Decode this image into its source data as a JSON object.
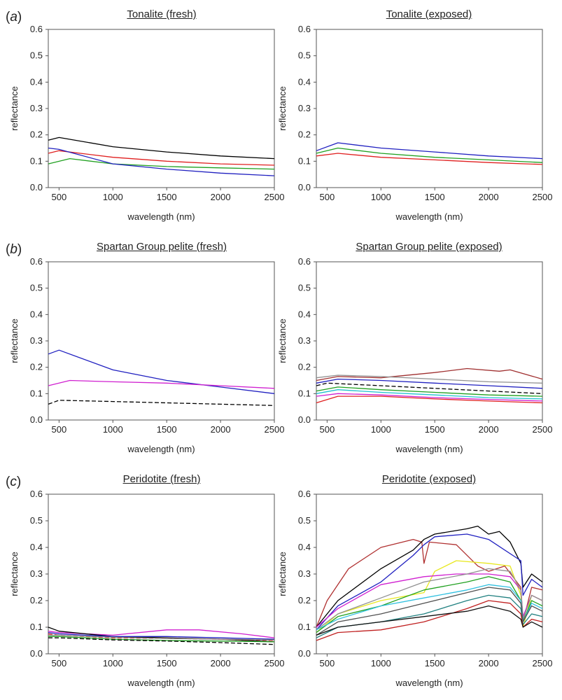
{
  "panel_labels": [
    {
      "pre": "(",
      "letter": "a",
      "post": ")"
    },
    {
      "pre": "(",
      "letter": "b",
      "post": ")"
    },
    {
      "pre": "(",
      "letter": "c",
      "post": ")"
    }
  ],
  "chart_data": [
    {
      "type": "line",
      "title": "Tonalite (fresh)",
      "xlabel": "wavelength (nm)",
      "ylabel": "reflectance",
      "xlim": [
        400,
        2500
      ],
      "ylim": [
        0,
        0.6
      ],
      "xticks": [
        500,
        1000,
        1500,
        2000,
        2500
      ],
      "yticks": [
        0.0,
        0.1,
        0.2,
        0.3,
        0.4,
        0.5,
        0.6
      ],
      "series": [
        {
          "name": "black",
          "color": "#000000",
          "x": [
            400,
            500,
            1000,
            1500,
            2000,
            2500
          ],
          "y": [
            0.18,
            0.19,
            0.155,
            0.135,
            0.12,
            0.11
          ]
        },
        {
          "name": "red",
          "color": "#e02020",
          "x": [
            400,
            500,
            1000,
            1500,
            2000,
            2500
          ],
          "y": [
            0.13,
            0.14,
            0.115,
            0.1,
            0.09,
            0.085
          ]
        },
        {
          "name": "green",
          "color": "#20a020",
          "x": [
            400,
            600,
            1000,
            1500,
            2000,
            2500
          ],
          "y": [
            0.09,
            0.11,
            0.09,
            0.08,
            0.075,
            0.07
          ]
        },
        {
          "name": "blue",
          "color": "#2020c0",
          "x": [
            400,
            500,
            1000,
            1500,
            2000,
            2500
          ],
          "y": [
            0.15,
            0.145,
            0.09,
            0.07,
            0.055,
            0.045
          ]
        }
      ]
    },
    {
      "type": "line",
      "title": "Tonalite (exposed)",
      "xlabel": "wavelength (nm)",
      "ylabel": "reflectance",
      "xlim": [
        400,
        2500
      ],
      "ylim": [
        0,
        0.6
      ],
      "xticks": [
        500,
        1000,
        1500,
        2000,
        2500
      ],
      "yticks": [
        0.0,
        0.1,
        0.2,
        0.3,
        0.4,
        0.5,
        0.6
      ],
      "series": [
        {
          "name": "blue",
          "color": "#2020c0",
          "x": [
            400,
            600,
            1000,
            1500,
            2000,
            2500
          ],
          "y": [
            0.14,
            0.17,
            0.15,
            0.135,
            0.12,
            0.11
          ]
        },
        {
          "name": "green",
          "color": "#20a020",
          "x": [
            400,
            600,
            1000,
            1500,
            2000,
            2500
          ],
          "y": [
            0.13,
            0.15,
            0.13,
            0.115,
            0.105,
            0.095
          ]
        },
        {
          "name": "red",
          "color": "#e02020",
          "x": [
            400,
            600,
            1000,
            1500,
            2000,
            2500
          ],
          "y": [
            0.12,
            0.13,
            0.115,
            0.105,
            0.095,
            0.088
          ]
        }
      ]
    },
    {
      "type": "line",
      "title": "Spartan Group pelite (fresh)",
      "xlabel": "wavelength (nm)",
      "ylabel": "reflectance",
      "xlim": [
        400,
        2500
      ],
      "ylim": [
        0,
        0.6
      ],
      "xticks": [
        500,
        1000,
        1500,
        2000,
        2500
      ],
      "yticks": [
        0.0,
        0.1,
        0.2,
        0.3,
        0.4,
        0.5,
        0.6
      ],
      "series": [
        {
          "name": "blue",
          "color": "#2020c0",
          "x": [
            400,
            500,
            1000,
            1500,
            2000,
            2500
          ],
          "y": [
            0.25,
            0.265,
            0.19,
            0.15,
            0.125,
            0.1
          ]
        },
        {
          "name": "magenta",
          "color": "#d020d0",
          "x": [
            400,
            600,
            1000,
            1500,
            2000,
            2500
          ],
          "y": [
            0.13,
            0.15,
            0.145,
            0.14,
            0.13,
            0.12
          ]
        },
        {
          "name": "black dashed",
          "color": "#000000",
          "dashed": true,
          "x": [
            400,
            500,
            1000,
            1500,
            2000,
            2500
          ],
          "y": [
            0.06,
            0.075,
            0.07,
            0.065,
            0.06,
            0.055
          ]
        }
      ]
    },
    {
      "type": "line",
      "title": "Spartan Group pelite (exposed)",
      "xlabel": "wavelength (nm)",
      "ylabel": "reflectance",
      "xlim": [
        400,
        2500
      ],
      "ylim": [
        0,
        0.6
      ],
      "xticks": [
        500,
        1000,
        1500,
        2000,
        2500
      ],
      "yticks": [
        0.0,
        0.1,
        0.2,
        0.3,
        0.4,
        0.5,
        0.6
      ],
      "series": [
        {
          "name": "brown",
          "color": "#a03030",
          "x": [
            400,
            600,
            1000,
            1500,
            1800,
            2100,
            2200,
            2500
          ],
          "y": [
            0.15,
            0.165,
            0.16,
            0.18,
            0.195,
            0.185,
            0.19,
            0.155
          ]
        },
        {
          "name": "gray",
          "color": "#909090",
          "x": [
            400,
            600,
            1000,
            1500,
            2000,
            2500
          ],
          "y": [
            0.16,
            0.17,
            0.165,
            0.155,
            0.145,
            0.14
          ]
        },
        {
          "name": "blue",
          "color": "#2020c0",
          "x": [
            400,
            600,
            1000,
            1500,
            2000,
            2500
          ],
          "y": [
            0.14,
            0.155,
            0.15,
            0.14,
            0.13,
            0.12
          ]
        },
        {
          "name": "black dashed",
          "color": "#000000",
          "dashed": true,
          "x": [
            400,
            500,
            1000,
            1500,
            2000,
            2500
          ],
          "y": [
            0.13,
            0.14,
            0.13,
            0.12,
            0.11,
            0.1
          ]
        },
        {
          "name": "green",
          "color": "#20a020",
          "x": [
            400,
            600,
            1000,
            1500,
            2000,
            2500
          ],
          "y": [
            0.11,
            0.125,
            0.115,
            0.105,
            0.095,
            0.09
          ]
        },
        {
          "name": "cyan",
          "color": "#20c0d0",
          "x": [
            400,
            600,
            1000,
            1500,
            2000,
            2500
          ],
          "y": [
            0.1,
            0.115,
            0.105,
            0.095,
            0.085,
            0.08
          ]
        },
        {
          "name": "magenta",
          "color": "#d020d0",
          "x": [
            400,
            600,
            1000,
            1500,
            2000,
            2500
          ],
          "y": [
            0.09,
            0.1,
            0.095,
            0.085,
            0.078,
            0.072
          ]
        },
        {
          "name": "red",
          "color": "#e02020",
          "x": [
            400,
            600,
            1000,
            1500,
            2000,
            2500
          ],
          "y": [
            0.065,
            0.09,
            0.09,
            0.08,
            0.072,
            0.065
          ]
        }
      ]
    },
    {
      "type": "line",
      "title": "Peridotite (fresh)",
      "xlabel": "wavelength (nm)",
      "ylabel": "reflectance",
      "xlim": [
        400,
        2500
      ],
      "ylim": [
        0,
        0.6
      ],
      "xticks": [
        500,
        1000,
        1500,
        2000,
        2500
      ],
      "yticks": [
        0.0,
        0.1,
        0.2,
        0.3,
        0.4,
        0.5,
        0.6
      ],
      "series": [
        {
          "name": "magenta",
          "color": "#d020d0",
          "x": [
            400,
            500,
            1000,
            1500,
            1800,
            2200,
            2500
          ],
          "y": [
            0.085,
            0.08,
            0.07,
            0.09,
            0.09,
            0.075,
            0.06
          ]
        },
        {
          "name": "black",
          "color": "#000000",
          "x": [
            400,
            500,
            1000,
            1500,
            2000,
            2500
          ],
          "y": [
            0.1,
            0.085,
            0.065,
            0.06,
            0.055,
            0.045
          ]
        },
        {
          "name": "blue",
          "color": "#2020c0",
          "x": [
            400,
            500,
            1000,
            1500,
            2000,
            2500
          ],
          "y": [
            0.08,
            0.075,
            0.065,
            0.065,
            0.06,
            0.055
          ]
        },
        {
          "name": "red dashed",
          "color": "#e02020",
          "dashed": true,
          "x": [
            400,
            500,
            1000,
            1500,
            2000,
            2500
          ],
          "y": [
            0.075,
            0.07,
            0.06,
            0.058,
            0.055,
            0.05
          ]
        },
        {
          "name": "green",
          "color": "#20a020",
          "x": [
            400,
            500,
            1000,
            1500,
            2000,
            2500
          ],
          "y": [
            0.065,
            0.065,
            0.055,
            0.05,
            0.048,
            0.045
          ]
        },
        {
          "name": "gray",
          "color": "#808080",
          "x": [
            400,
            500,
            1000,
            1500,
            2000,
            2500
          ],
          "y": [
            0.07,
            0.07,
            0.062,
            0.058,
            0.055,
            0.052
          ]
        },
        {
          "name": "black dashed",
          "color": "#000000",
          "dashed": true,
          "x": [
            400,
            500,
            1000,
            1500,
            2000,
            2500
          ],
          "y": [
            0.06,
            0.06,
            0.052,
            0.048,
            0.042,
            0.035
          ]
        }
      ]
    },
    {
      "type": "line",
      "title": "Peridotite (exposed)",
      "xlabel": "wavelength (nm)",
      "ylabel": "reflectance",
      "xlim": [
        400,
        2500
      ],
      "ylim": [
        0,
        0.6
      ],
      "xticks": [
        500,
        1000,
        1500,
        2000,
        2500
      ],
      "yticks": [
        0.0,
        0.1,
        0.2,
        0.3,
        0.4,
        0.5,
        0.6
      ],
      "series": [
        {
          "name": "brown",
          "color": "#b03030",
          "x": [
            400,
            500,
            700,
            1000,
            1300,
            1380,
            1400,
            1450,
            1700,
            1900,
            2000,
            2150,
            2300,
            2320,
            2400,
            2500
          ],
          "y": [
            0.1,
            0.2,
            0.32,
            0.4,
            0.43,
            0.42,
            0.34,
            0.42,
            0.41,
            0.33,
            0.31,
            0.33,
            0.25,
            0.12,
            0.25,
            0.24
          ]
        },
        {
          "name": "black",
          "color": "#000000",
          "x": [
            400,
            600,
            1000,
            1300,
            1400,
            1500,
            1800,
            1900,
            2000,
            2100,
            2200,
            2300,
            2320,
            2400,
            2500
          ],
          "y": [
            0.1,
            0.2,
            0.32,
            0.39,
            0.43,
            0.45,
            0.47,
            0.48,
            0.45,
            0.46,
            0.42,
            0.34,
            0.25,
            0.3,
            0.27
          ]
        },
        {
          "name": "blue",
          "color": "#2020c0",
          "x": [
            400,
            600,
            1000,
            1300,
            1400,
            1500,
            1800,
            1900,
            2000,
            2300,
            2320,
            2400,
            2500
          ],
          "y": [
            0.09,
            0.18,
            0.27,
            0.37,
            0.41,
            0.44,
            0.45,
            0.44,
            0.43,
            0.35,
            0.22,
            0.28,
            0.25
          ]
        },
        {
          "name": "yellow",
          "color": "#e8e820",
          "x": [
            400,
            600,
            1000,
            1400,
            1500,
            1700,
            2000,
            2200,
            2300,
            2320,
            2400,
            2500
          ],
          "y": [
            0.08,
            0.15,
            0.2,
            0.23,
            0.31,
            0.35,
            0.34,
            0.33,
            0.22,
            0.1,
            0.22,
            0.2
          ]
        },
        {
          "name": "magenta",
          "color": "#d020d0",
          "x": [
            400,
            600,
            1000,
            1400,
            1700,
            2000,
            2200,
            2300,
            2320,
            2400,
            2500
          ],
          "y": [
            0.1,
            0.17,
            0.26,
            0.29,
            0.3,
            0.3,
            0.29,
            0.24,
            0.14,
            0.22,
            0.2
          ]
        },
        {
          "name": "gray",
          "color": "#909090",
          "x": [
            400,
            600,
            1000,
            1400,
            1800,
            2000,
            2200,
            2300,
            2320,
            2400,
            2500
          ],
          "y": [
            0.09,
            0.15,
            0.21,
            0.27,
            0.3,
            0.32,
            0.31,
            0.24,
            0.13,
            0.22,
            0.2
          ]
        },
        {
          "name": "green",
          "color": "#20a020",
          "x": [
            400,
            600,
            1000,
            1400,
            1800,
            2000,
            2200,
            2300,
            2320,
            2400,
            2500
          ],
          "y": [
            0.08,
            0.14,
            0.18,
            0.24,
            0.27,
            0.29,
            0.27,
            0.2,
            0.12,
            0.2,
            0.18
          ]
        },
        {
          "name": "cyan",
          "color": "#30c0e0",
          "x": [
            400,
            600,
            1000,
            1400,
            1800,
            2000,
            2200,
            2300,
            2320,
            2400,
            2500
          ],
          "y": [
            0.09,
            0.13,
            0.18,
            0.21,
            0.24,
            0.26,
            0.25,
            0.2,
            0.12,
            0.19,
            0.17
          ]
        },
        {
          "name": "dark gray",
          "color": "#505050",
          "x": [
            400,
            600,
            1000,
            1400,
            1800,
            2000,
            2200,
            2300,
            2320,
            2400,
            2500
          ],
          "y": [
            0.07,
            0.12,
            0.15,
            0.19,
            0.23,
            0.25,
            0.24,
            0.19,
            0.12,
            0.18,
            0.16
          ]
        },
        {
          "name": "teal",
          "color": "#208080",
          "x": [
            400,
            600,
            1000,
            1400,
            1800,
            2000,
            2200,
            2300,
            2320,
            2400,
            2500
          ],
          "y": [
            0.06,
            0.1,
            0.12,
            0.15,
            0.2,
            0.22,
            0.21,
            0.17,
            0.11,
            0.15,
            0.14
          ]
        },
        {
          "name": "red",
          "color": "#c02020",
          "x": [
            400,
            600,
            1000,
            1400,
            1800,
            2000,
            2200,
            2300,
            2320,
            2400,
            2500
          ],
          "y": [
            0.05,
            0.08,
            0.09,
            0.12,
            0.17,
            0.2,
            0.19,
            0.15,
            0.1,
            0.13,
            0.12
          ]
        },
        {
          "name": "black 2",
          "color": "#101010",
          "x": [
            400,
            600,
            1000,
            1400,
            1800,
            2000,
            2200,
            2300,
            2320,
            2400,
            2500
          ],
          "y": [
            0.07,
            0.1,
            0.12,
            0.14,
            0.16,
            0.18,
            0.16,
            0.13,
            0.1,
            0.12,
            0.1
          ]
        }
      ]
    }
  ]
}
